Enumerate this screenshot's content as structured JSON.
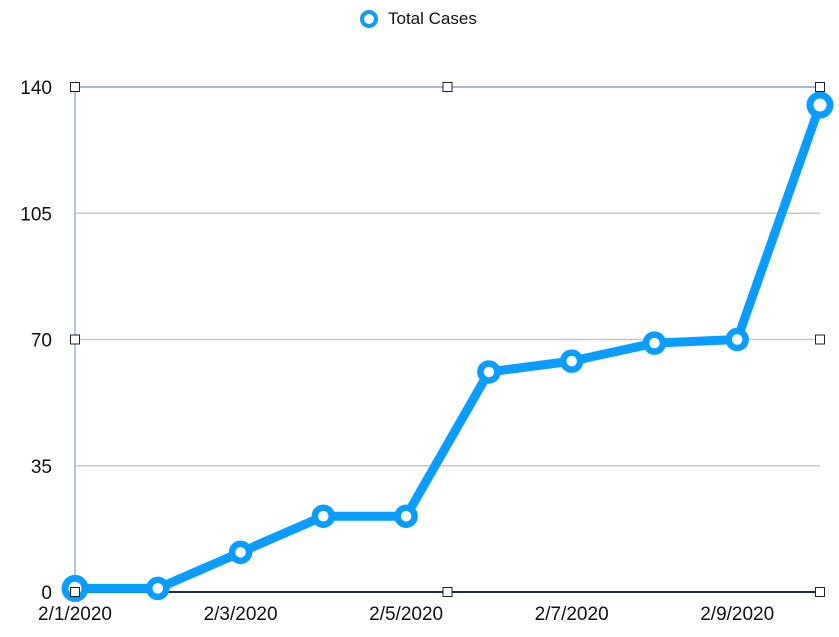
{
  "chart_data": {
    "type": "line",
    "x": [
      "2/1/2020",
      "2/2/2020",
      "2/3/2020",
      "2/4/2020",
      "2/5/2020",
      "2/6/2020",
      "2/7/2020",
      "2/8/2020",
      "2/9/2020",
      "2/10/2020"
    ],
    "x_tick_labels": [
      "2/1/2020",
      "2/3/2020",
      "2/5/2020",
      "2/7/2020",
      "2/9/2020"
    ],
    "series": [
      {
        "name": "Total Cases",
        "values": [
          1,
          1,
          11,
          21,
          21,
          61,
          64,
          69,
          70,
          135
        ]
      }
    ],
    "y_ticks": [
      0,
      35,
      70,
      105,
      140
    ],
    "ylim": [
      0,
      140
    ],
    "legend": "top-center",
    "grid": true,
    "colors": {
      "series": "#0a9cff",
      "grid": "#c8c8c8",
      "selection": "#7f9fd8"
    }
  }
}
